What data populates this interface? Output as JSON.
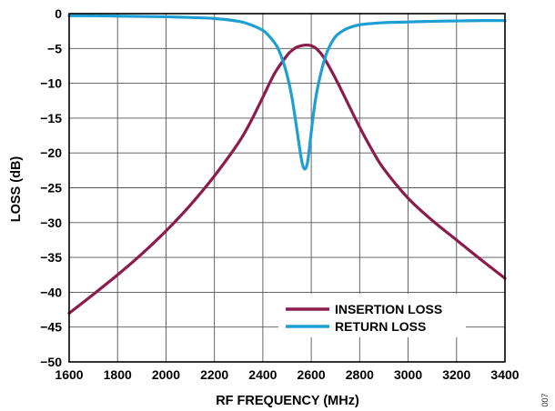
{
  "chart_data": {
    "type": "line",
    "title": "",
    "xlabel": "RF FREQUENCY (MHz)",
    "ylabel": "LOSS (dB)",
    "xlim": [
      1600,
      3400
    ],
    "ylim": [
      -50,
      0
    ],
    "xticks": [
      1600,
      1800,
      2000,
      2200,
      2400,
      2600,
      2800,
      3000,
      3200,
      3400
    ],
    "yticks": [
      0,
      -5,
      -10,
      -15,
      -20,
      -25,
      -30,
      -35,
      -40,
      -45,
      -50
    ],
    "ytick_labels": [
      "0",
      "−5",
      "−10",
      "−15",
      "−20",
      "−25",
      "−30",
      "−35",
      "−40",
      "−45",
      "−50"
    ],
    "grid": true,
    "legend_position": "bottom-right",
    "figure_id": "007",
    "series": [
      {
        "name": "INSERTION LOSS",
        "color": "#8c1c4c",
        "x": [
          1600,
          1700,
          1800,
          1900,
          2000,
          2100,
          2200,
          2300,
          2350,
          2400,
          2450,
          2500,
          2520,
          2540,
          2560,
          2580,
          2600,
          2620,
          2650,
          2700,
          2750,
          2800,
          2850,
          2900,
          3000,
          3100,
          3200,
          3300,
          3400
        ],
        "y": [
          -43,
          -40.3,
          -37.5,
          -34.5,
          -31.2,
          -27.5,
          -23.3,
          -18.5,
          -15.5,
          -12,
          -8.5,
          -6,
          -5.3,
          -4.8,
          -4.6,
          -4.5,
          -4.6,
          -5,
          -6.2,
          -9.3,
          -12.8,
          -16.3,
          -19.5,
          -22.3,
          -26.5,
          -29.7,
          -32.5,
          -35.3,
          -38
        ]
      },
      {
        "name": "RETURN LOSS",
        "color": "#1d9fd4",
        "x": [
          1600,
          1700,
          1800,
          1900,
          2000,
          2100,
          2200,
          2300,
          2350,
          2400,
          2420,
          2440,
          2460,
          2480,
          2500,
          2520,
          2540,
          2555,
          2565,
          2575,
          2585,
          2595,
          2605,
          2620,
          2640,
          2660,
          2680,
          2700,
          2720,
          2750,
          2800,
          2900,
          3000,
          3100,
          3200,
          3300,
          3400
        ],
        "y": [
          -0.3,
          -0.3,
          -0.35,
          -0.4,
          -0.45,
          -0.55,
          -0.7,
          -1.1,
          -1.6,
          -2.4,
          -3,
          -3.8,
          -4.8,
          -6.5,
          -8.8,
          -12,
          -16.5,
          -20,
          -21.8,
          -22.3,
          -21.3,
          -18.5,
          -15.5,
          -11.8,
          -8.5,
          -6,
          -4.4,
          -3.3,
          -2.7,
          -2.1,
          -1.6,
          -1.3,
          -1.2,
          -1.1,
          -1.05,
          -1,
          -1
        ]
      }
    ]
  }
}
